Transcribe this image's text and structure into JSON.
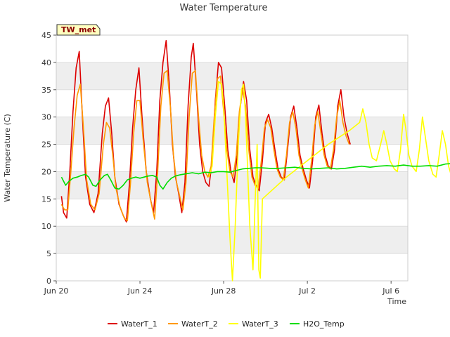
{
  "chart_data": {
    "type": "line",
    "title": "Water Temperature",
    "xlabel": "Time",
    "ylabel": "Water Temperature (C)",
    "badge": "TW_met",
    "ylim": [
      0,
      45
    ],
    "yticks": [
      0,
      5,
      10,
      15,
      20,
      25,
      30,
      35,
      40,
      45
    ],
    "xlim_days": [
      0,
      16.8
    ],
    "xticks": [
      {
        "day": 0,
        "label": "Jun 20"
      },
      {
        "day": 4,
        "label": "Jun 24"
      },
      {
        "day": 8,
        "label": "Jun 28"
      },
      {
        "day": 12,
        "label": "Jul 2"
      },
      {
        "day": 16,
        "label": "Jul 6"
      }
    ],
    "grid": "horizontal bands",
    "legend_position": "bottom",
    "series": [
      {
        "name": "WaterT_1",
        "color": "#dd0000",
        "points": [
          [
            0.25,
            15.5
          ],
          [
            0.35,
            12.5
          ],
          [
            0.5,
            11.5
          ],
          [
            0.65,
            20
          ],
          [
            0.8,
            31
          ],
          [
            0.95,
            39
          ],
          [
            1.1,
            42
          ],
          [
            1.25,
            30
          ],
          [
            1.4,
            19
          ],
          [
            1.6,
            14
          ],
          [
            1.8,
            12.5
          ],
          [
            2.0,
            16
          ],
          [
            2.2,
            27
          ],
          [
            2.35,
            32
          ],
          [
            2.5,
            33.5
          ],
          [
            2.65,
            27
          ],
          [
            2.8,
            19
          ],
          [
            3.0,
            14
          ],
          [
            3.2,
            12
          ],
          [
            3.35,
            10.8
          ],
          [
            3.5,
            18
          ],
          [
            3.65,
            28
          ],
          [
            3.8,
            35
          ],
          [
            3.95,
            39
          ],
          [
            4.1,
            30
          ],
          [
            4.3,
            20
          ],
          [
            4.5,
            15
          ],
          [
            4.65,
            12.5
          ],
          [
            4.8,
            20
          ],
          [
            4.95,
            33
          ],
          [
            5.1,
            40
          ],
          [
            5.25,
            44
          ],
          [
            5.4,
            36
          ],
          [
            5.55,
            25
          ],
          [
            5.7,
            19
          ],
          [
            5.85,
            16
          ],
          [
            6.0,
            12.5
          ],
          [
            6.15,
            18
          ],
          [
            6.3,
            32
          ],
          [
            6.45,
            41
          ],
          [
            6.55,
            43.5
          ],
          [
            6.7,
            35
          ],
          [
            6.85,
            25
          ],
          [
            7.0,
            20
          ],
          [
            7.15,
            18
          ],
          [
            7.3,
            17.3
          ],
          [
            7.45,
            22
          ],
          [
            7.6,
            33
          ],
          [
            7.75,
            40
          ],
          [
            7.9,
            39
          ],
          [
            8.05,
            32
          ],
          [
            8.2,
            24
          ],
          [
            8.35,
            20
          ],
          [
            8.5,
            18
          ],
          [
            8.65,
            23
          ],
          [
            8.8,
            32
          ],
          [
            8.95,
            36.5
          ],
          [
            9.1,
            33
          ],
          [
            9.25,
            24
          ],
          [
            9.4,
            19
          ],
          [
            9.55,
            17.5
          ],
          [
            9.7,
            16.5
          ],
          [
            9.85,
            22
          ],
          [
            10.0,
            29
          ],
          [
            10.15,
            30.5
          ],
          [
            10.3,
            28
          ],
          [
            10.45,
            24
          ],
          [
            10.6,
            20.5
          ],
          [
            10.75,
            19
          ],
          [
            10.9,
            18.5
          ],
          [
            11.05,
            24
          ],
          [
            11.2,
            30
          ],
          [
            11.35,
            32
          ],
          [
            11.5,
            28
          ],
          [
            11.65,
            23
          ],
          [
            11.8,
            20.5
          ],
          [
            11.95,
            18.5
          ],
          [
            12.1,
            17
          ],
          [
            12.25,
            22
          ],
          [
            12.4,
            30
          ],
          [
            12.55,
            32.2
          ],
          [
            12.7,
            27
          ],
          [
            12.85,
            23
          ],
          [
            13.0,
            21
          ],
          [
            13.15,
            20.5
          ],
          [
            13.3,
            24
          ],
          [
            13.45,
            32
          ],
          [
            13.6,
            35
          ],
          [
            13.75,
            30
          ],
          [
            13.9,
            27
          ],
          [
            14.05,
            25
          ]
        ]
      },
      {
        "name": "WaterT_2",
        "color": "#ff9900",
        "points": [
          [
            0.25,
            14
          ],
          [
            0.4,
            13
          ],
          [
            0.55,
            13
          ],
          [
            0.7,
            20
          ],
          [
            0.85,
            28
          ],
          [
            1.0,
            34
          ],
          [
            1.15,
            36
          ],
          [
            1.3,
            28
          ],
          [
            1.45,
            18.5
          ],
          [
            1.65,
            14
          ],
          [
            1.85,
            13
          ],
          [
            2.05,
            16
          ],
          [
            2.25,
            25
          ],
          [
            2.4,
            29
          ],
          [
            2.55,
            28
          ],
          [
            2.7,
            23
          ],
          [
            2.85,
            17
          ],
          [
            3.05,
            13.5
          ],
          [
            3.25,
            11.5
          ],
          [
            3.4,
            11
          ],
          [
            3.55,
            18
          ],
          [
            3.7,
            27
          ],
          [
            3.85,
            33
          ],
          [
            4.0,
            33
          ],
          [
            4.15,
            26
          ],
          [
            4.35,
            18
          ],
          [
            4.55,
            14
          ],
          [
            4.7,
            11.3
          ],
          [
            4.85,
            20
          ],
          [
            5.0,
            32
          ],
          [
            5.15,
            38
          ],
          [
            5.3,
            38.5
          ],
          [
            5.45,
            32
          ],
          [
            5.6,
            23
          ],
          [
            5.75,
            18
          ],
          [
            5.9,
            15.5
          ],
          [
            6.05,
            13
          ],
          [
            6.2,
            18
          ],
          [
            6.35,
            30
          ],
          [
            6.5,
            38
          ],
          [
            6.65,
            38.5
          ],
          [
            6.8,
            30
          ],
          [
            6.95,
            23
          ],
          [
            7.1,
            20
          ],
          [
            7.25,
            19
          ],
          [
            7.4,
            21
          ],
          [
            7.55,
            30
          ],
          [
            7.7,
            37
          ],
          [
            7.85,
            37.5
          ],
          [
            8.0,
            31
          ],
          [
            8.15,
            24
          ],
          [
            8.3,
            20
          ],
          [
            8.45,
            19
          ],
          [
            8.6,
            23
          ],
          [
            8.75,
            31
          ],
          [
            8.9,
            35
          ],
          [
            9.05,
            32
          ],
          [
            9.2,
            24
          ],
          [
            9.35,
            19
          ],
          [
            9.5,
            17.5
          ],
          [
            9.65,
            17
          ],
          [
            9.8,
            22
          ],
          [
            9.95,
            28
          ],
          [
            10.1,
            29.5
          ],
          [
            10.25,
            28
          ],
          [
            10.4,
            24
          ],
          [
            10.55,
            20.5
          ],
          [
            10.7,
            19
          ],
          [
            10.85,
            18.5
          ],
          [
            11.0,
            23
          ],
          [
            11.15,
            29
          ],
          [
            11.3,
            31
          ],
          [
            11.45,
            28
          ],
          [
            11.6,
            23
          ],
          [
            11.75,
            20.5
          ],
          [
            11.9,
            18.5
          ],
          [
            12.05,
            17
          ],
          [
            12.2,
            22
          ],
          [
            12.35,
            28.5
          ],
          [
            12.5,
            31
          ],
          [
            12.65,
            27
          ],
          [
            12.8,
            23
          ],
          [
            12.95,
            21
          ],
          [
            13.1,
            20.5
          ],
          [
            13.25,
            24
          ],
          [
            13.4,
            30
          ],
          [
            13.55,
            33
          ],
          [
            13.7,
            29
          ],
          [
            13.85,
            26.5
          ],
          [
            14.0,
            25
          ]
        ]
      },
      {
        "name": "WaterT_3",
        "color": "#ffff00",
        "points": [
          [
            7.3,
            19
          ],
          [
            7.45,
            21
          ],
          [
            7.6,
            30
          ],
          [
            7.75,
            36.5
          ],
          [
            7.9,
            36
          ],
          [
            8.0,
            32
          ],
          [
            8.15,
            20
          ],
          [
            8.3,
            8
          ],
          [
            8.42,
            0
          ],
          [
            8.55,
            10
          ],
          [
            8.7,
            25
          ],
          [
            8.85,
            35
          ],
          [
            8.95,
            36
          ],
          [
            9.05,
            30
          ],
          [
            9.15,
            20
          ],
          [
            9.25,
            10
          ],
          [
            9.4,
            2
          ],
          [
            9.5,
            14
          ],
          [
            9.6,
            25
          ],
          [
            9.68,
            2
          ],
          [
            9.75,
            0.5
          ],
          [
            9.85,
            15
          ],
          [
            11.0,
            19
          ],
          [
            12.0,
            22
          ],
          [
            13.0,
            25
          ],
          [
            14.0,
            27.5
          ],
          [
            14.5,
            29
          ],
          [
            14.65,
            31.5
          ],
          [
            14.8,
            29
          ],
          [
            14.95,
            25
          ],
          [
            15.1,
            22.5
          ],
          [
            15.3,
            22
          ],
          [
            15.5,
            25
          ],
          [
            15.65,
            27.5
          ],
          [
            15.8,
            25
          ],
          [
            15.95,
            22
          ],
          [
            16.15,
            20.5
          ],
          [
            16.3,
            20
          ],
          [
            16.45,
            24
          ],
          [
            16.6,
            30.5
          ],
          [
            16.7,
            28
          ],
          [
            16.85,
            23
          ],
          [
            17.0,
            21
          ],
          [
            17.2,
            20
          ],
          [
            17.35,
            24
          ],
          [
            17.5,
            30
          ],
          [
            17.65,
            26
          ],
          [
            17.8,
            22
          ],
          [
            18.0,
            19.5
          ],
          [
            18.15,
            19
          ],
          [
            18.3,
            23
          ],
          [
            18.45,
            27.5
          ],
          [
            18.6,
            25
          ],
          [
            18.75,
            21
          ],
          [
            18.9,
            19
          ],
          [
            19.05,
            18
          ],
          [
            19.2,
            22
          ],
          [
            19.35,
            27.5
          ],
          [
            19.5,
            25.5
          ],
          [
            19.65,
            22
          ],
          [
            19.8,
            20.8
          ]
        ]
      },
      {
        "name": "H2O_Temp",
        "color": "#00dd00",
        "points": [
          [
            0.25,
            19
          ],
          [
            0.45,
            17.5
          ],
          [
            0.6,
            18.2
          ],
          [
            0.8,
            18.8
          ],
          [
            1.0,
            19
          ],
          [
            1.2,
            19.3
          ],
          [
            1.4,
            19.5
          ],
          [
            1.55,
            19
          ],
          [
            1.75,
            17.5
          ],
          [
            1.9,
            17.3
          ],
          [
            2.1,
            18.5
          ],
          [
            2.3,
            19.3
          ],
          [
            2.45,
            19.5
          ],
          [
            2.6,
            18.5
          ],
          [
            2.8,
            17
          ],
          [
            3.0,
            16.8
          ],
          [
            3.2,
            17.5
          ],
          [
            3.4,
            18.5
          ],
          [
            3.6,
            18.8
          ],
          [
            3.8,
            19
          ],
          [
            4.0,
            18.8
          ],
          [
            4.2,
            19
          ],
          [
            4.4,
            19.2
          ],
          [
            4.6,
            19.3
          ],
          [
            4.8,
            19
          ],
          [
            4.95,
            17.5
          ],
          [
            5.1,
            16.8
          ],
          [
            5.3,
            18
          ],
          [
            5.5,
            18.8
          ],
          [
            5.7,
            19.2
          ],
          [
            5.9,
            19.4
          ],
          [
            6.2,
            19.6
          ],
          [
            6.5,
            19.8
          ],
          [
            6.8,
            19.6
          ],
          [
            7.1,
            19.9
          ],
          [
            7.4,
            19.8
          ],
          [
            7.7,
            20
          ],
          [
            8.0,
            20
          ],
          [
            8.3,
            19.9
          ],
          [
            8.6,
            20.2
          ],
          [
            8.9,
            20.5
          ],
          [
            9.2,
            20.6
          ],
          [
            9.5,
            20.7
          ],
          [
            9.8,
            20.7
          ],
          [
            10.2,
            20.6
          ],
          [
            10.6,
            20.6
          ],
          [
            11.0,
            20.7
          ],
          [
            11.4,
            20.8
          ],
          [
            11.8,
            20.6
          ],
          [
            12.2,
            20.5
          ],
          [
            12.6,
            20.6
          ],
          [
            13.0,
            20.7
          ],
          [
            13.4,
            20.5
          ],
          [
            13.8,
            20.6
          ],
          [
            14.2,
            20.8
          ],
          [
            14.6,
            21
          ],
          [
            15.0,
            20.8
          ],
          [
            15.4,
            21
          ],
          [
            15.8,
            21.1
          ],
          [
            16.2,
            21
          ],
          [
            16.6,
            21.2
          ],
          [
            17.0,
            21
          ],
          [
            17.4,
            21
          ],
          [
            17.8,
            21.1
          ],
          [
            18.2,
            21
          ],
          [
            18.6,
            21.4
          ],
          [
            19.0,
            21.5
          ],
          [
            19.2,
            21
          ],
          [
            19.4,
            19.2
          ],
          [
            19.55,
            19
          ],
          [
            19.7,
            20.2
          ],
          [
            19.85,
            20.6
          ]
        ]
      }
    ]
  }
}
